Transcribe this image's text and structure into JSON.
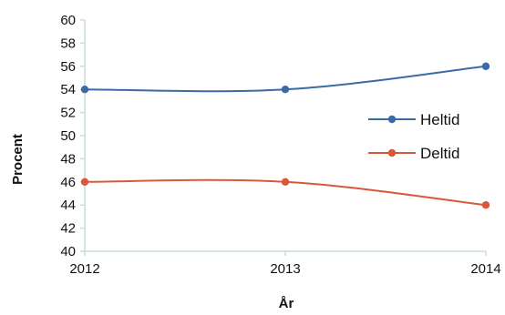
{
  "chart_data": {
    "type": "line",
    "xlabel": "År",
    "ylabel": "Procent",
    "categories": [
      "2012",
      "2013",
      "2014"
    ],
    "ylim": [
      40,
      60
    ],
    "yticks": [
      "40",
      "42",
      "44",
      "46",
      "48",
      "50",
      "52",
      "54",
      "56",
      "58",
      "60"
    ],
    "grid": false,
    "legend_position": "right",
    "series": [
      {
        "name": "Heltid",
        "values": [
          54,
          54,
          56
        ],
        "color": "#3b6aa6"
      },
      {
        "name": "Deltid",
        "values": [
          46,
          46,
          44
        ],
        "color": "#d9573a"
      }
    ]
  }
}
